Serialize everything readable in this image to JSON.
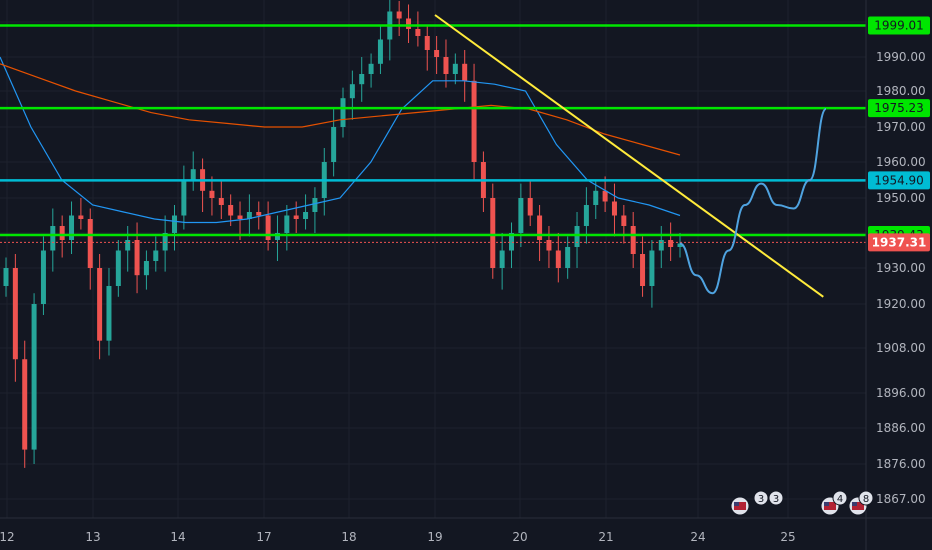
{
  "chart_data": {
    "type": "candlestick",
    "title": "",
    "xlabel": "",
    "ylabel": "",
    "ylim": [
      1862,
      2004
    ],
    "y_ticks": [
      "1867.00",
      "1876.00",
      "1886.00",
      "1896.00",
      "1908.00",
      "1920.00",
      "1930.00",
      "1940.00",
      "1950.00",
      "1960.00",
      "1970.00",
      "1980.00",
      "1990.00"
    ],
    "x_ticks": [
      "12",
      "13",
      "14",
      "17",
      "18",
      "19",
      "20",
      "21",
      "24",
      "25"
    ],
    "current_price": "1937.31",
    "levels": [
      {
        "label": "1999.01",
        "value": 1999.01,
        "color": "#00e600"
      },
      {
        "label": "1975.23",
        "value": 1975.23,
        "color": "#00e600"
      },
      {
        "label": "1954.90",
        "value": 1954.9,
        "color": "#00bcd4"
      },
      {
        "label": "1939.43",
        "value": 1939.43,
        "color": "#00e600"
      }
    ],
    "trendline": {
      "start": {
        "x": 19.0,
        "y": 2002
      },
      "end": {
        "x": 25.6,
        "y": 1922
      },
      "color": "#ffeb3b"
    },
    "candles_close": [
      1930,
      1905,
      1880,
      1920,
      1935,
      1942,
      1938,
      1945,
      1944,
      1930,
      1910,
      1925,
      1935,
      1938,
      1928,
      1932,
      1935,
      1940,
      1945,
      1955,
      1958,
      1952,
      1950,
      1948,
      1945,
      1944,
      1946,
      1945,
      1938,
      1940,
      1945,
      1944,
      1946,
      1950,
      1960,
      1970,
      1978,
      1982,
      1985,
      1988,
      1995,
      2003,
      2001,
      1998,
      1996,
      1992,
      1990,
      1985,
      1988,
      1983,
      1960,
      1950,
      1930,
      1935,
      1940,
      1950,
      1945,
      1938,
      1935,
      1930,
      1936,
      1942,
      1948,
      1952,
      1949,
      1945,
      1942,
      1934,
      1925,
      1935,
      1938,
      1936,
      1937
    ],
    "ma_blue": [
      1990,
      1970,
      1955,
      1948,
      1946,
      1944,
      1943,
      1943,
      1944,
      1946,
      1948,
      1950,
      1960,
      1975,
      1983,
      1983,
      1982,
      1980,
      1965,
      1955,
      1950,
      1948,
      1945
    ],
    "ma_orange": [
      1988,
      1984,
      1980,
      1977,
      1974,
      1972,
      1971,
      1970,
      1970,
      1972,
      1973,
      1974,
      1975,
      1976,
      1975,
      1972,
      1968,
      1965,
      1962
    ],
    "forecast": [
      1937,
      1928,
      1923,
      1935,
      1948,
      1954,
      1948,
      1947,
      1955,
      1975
    ],
    "event_badges": [
      "3",
      "3",
      "4",
      "8"
    ]
  }
}
